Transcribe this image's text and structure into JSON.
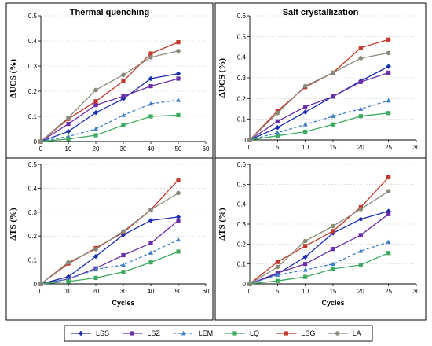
{
  "series_style": {
    "LSS": {
      "color": "#1a2fb0",
      "marker": "diamond",
      "dash": false
    },
    "LSZ": {
      "color": "#6a2fa8",
      "marker": "square",
      "dash": false
    },
    "LEM": {
      "color": "#3f7fc4",
      "marker": "triangle",
      "dash": true
    },
    "LQ": {
      "color": "#3dab5e",
      "marker": "square",
      "dash": false
    },
    "LSG": {
      "color": "#c0392b",
      "marker": "square",
      "dash": false
    },
    "LA": {
      "color": "#8a8a7a",
      "marker": "circle",
      "dash": false
    }
  },
  "legend": {
    "entries": [
      "LSS",
      "LSZ",
      "LEM",
      "LQ",
      "LSG",
      "LA"
    ]
  },
  "chart_data": [
    {
      "type": "line",
      "title": "Thermal quenching",
      "xlabel": "",
      "ylabel": "ΔUCS (%)",
      "x": [
        0,
        10,
        20,
        30,
        40,
        50
      ],
      "xlim": [
        0,
        60
      ],
      "xticks": [
        0,
        10,
        20,
        30,
        40,
        50,
        60
      ],
      "ylim": [
        0,
        0.5
      ],
      "yticks": [
        0,
        0.1,
        0.2,
        0.3,
        0.4,
        0.5
      ],
      "series": [
        {
          "name": "LSS",
          "values": [
            0,
            0.04,
            0.115,
            0.17,
            0.25,
            0.27
          ]
        },
        {
          "name": "LSZ",
          "values": [
            0,
            0.07,
            0.145,
            0.18,
            0.22,
            0.25
          ]
        },
        {
          "name": "LEM",
          "values": [
            0,
            0.02,
            0.05,
            0.105,
            0.15,
            0.165
          ]
        },
        {
          "name": "LQ",
          "values": [
            0,
            0.01,
            0.025,
            0.065,
            0.1,
            0.105
          ]
        },
        {
          "name": "LSG",
          "values": [
            0,
            0.09,
            0.16,
            0.24,
            0.35,
            0.395
          ]
        },
        {
          "name": "LA",
          "values": [
            0,
            0.095,
            0.205,
            0.265,
            0.335,
            0.36
          ]
        }
      ]
    },
    {
      "type": "line",
      "title": "Salt crystallization",
      "xlabel": "",
      "ylabel": "ΔUCS (%)",
      "x": [
        0,
        5,
        10,
        15,
        20,
        25
      ],
      "xlim": [
        0,
        30
      ],
      "xticks": [
        0,
        5,
        10,
        15,
        20,
        25,
        30
      ],
      "ylim": [
        0,
        0.6
      ],
      "yticks": [
        0,
        0.1,
        0.2,
        0.3,
        0.4,
        0.5,
        0.6
      ],
      "series": [
        {
          "name": "LSS",
          "values": [
            0,
            0.06,
            0.135,
            0.21,
            0.285,
            0.355
          ]
        },
        {
          "name": "LSZ",
          "values": [
            0,
            0.09,
            0.16,
            0.21,
            0.28,
            0.325
          ]
        },
        {
          "name": "LEM",
          "values": [
            0,
            0.035,
            0.075,
            0.115,
            0.15,
            0.19
          ]
        },
        {
          "name": "LQ",
          "values": [
            0,
            0.02,
            0.04,
            0.075,
            0.115,
            0.13
          ]
        },
        {
          "name": "LSG",
          "values": [
            0,
            0.14,
            0.255,
            0.325,
            0.445,
            0.485
          ]
        },
        {
          "name": "LA",
          "values": [
            0,
            0.13,
            0.26,
            0.325,
            0.395,
            0.42
          ]
        }
      ]
    },
    {
      "type": "line",
      "title": "",
      "xlabel": "Cycles",
      "ylabel": "ΔTS (%)",
      "x": [
        0,
        10,
        20,
        30,
        40,
        50
      ],
      "xlim": [
        0,
        60
      ],
      "xticks": [
        0,
        10,
        20,
        30,
        40,
        50,
        60
      ],
      "ylim": [
        0,
        0.5
      ],
      "yticks": [
        0,
        0.1,
        0.2,
        0.3,
        0.4,
        0.5
      ],
      "series": [
        {
          "name": "LSS",
          "values": [
            0,
            0.03,
            0.115,
            0.205,
            0.265,
            0.28
          ]
        },
        {
          "name": "LSZ",
          "values": [
            0,
            0.02,
            0.065,
            0.12,
            0.17,
            0.265
          ]
        },
        {
          "name": "LEM",
          "values": [
            0,
            0.02,
            0.06,
            0.08,
            0.13,
            0.185
          ]
        },
        {
          "name": "LQ",
          "values": [
            0,
            0.01,
            0.025,
            0.05,
            0.09,
            0.135
          ]
        },
        {
          "name": "LSG",
          "values": [
            0,
            0.085,
            0.15,
            0.215,
            0.31,
            0.435
          ]
        },
        {
          "name": "LA",
          "values": [
            0,
            0.09,
            0.145,
            0.22,
            0.31,
            0.38
          ]
        }
      ]
    },
    {
      "type": "line",
      "title": "",
      "xlabel": "Cycles",
      "ylabel": "ΔTS (%)",
      "x": [
        0,
        5,
        10,
        15,
        20,
        25
      ],
      "xlim": [
        0,
        30
      ],
      "xticks": [
        0,
        5,
        10,
        15,
        20,
        25,
        30
      ],
      "ylim": [
        0,
        0.6
      ],
      "yticks": [
        0,
        0.1,
        0.2,
        0.3,
        0.4,
        0.5,
        0.6
      ],
      "series": [
        {
          "name": "LSS",
          "values": [
            0,
            0.05,
            0.135,
            0.255,
            0.325,
            0.365
          ]
        },
        {
          "name": "LSZ",
          "values": [
            0,
            0.055,
            0.1,
            0.175,
            0.245,
            0.35
          ]
        },
        {
          "name": "LEM",
          "values": [
            0,
            0.045,
            0.07,
            0.1,
            0.165,
            0.21
          ]
        },
        {
          "name": "LQ",
          "values": [
            0,
            0.015,
            0.035,
            0.075,
            0.095,
            0.155
          ]
        },
        {
          "name": "LSG",
          "values": [
            0,
            0.11,
            0.19,
            0.265,
            0.385,
            0.535
          ]
        },
        {
          "name": "LA",
          "values": [
            0,
            0.085,
            0.215,
            0.29,
            0.375,
            0.465
          ]
        }
      ]
    }
  ]
}
